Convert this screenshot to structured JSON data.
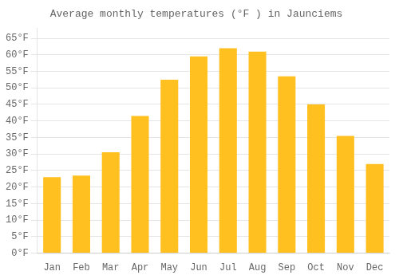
{
  "chart_data": {
    "type": "bar",
    "title": "Average monthly temperatures (°F ) in Jaunciems",
    "categories": [
      "Jan",
      "Feb",
      "Mar",
      "Apr",
      "May",
      "Jun",
      "Jul",
      "Aug",
      "Sep",
      "Oct",
      "Nov",
      "Dec"
    ],
    "values": [
      23,
      23.5,
      30.5,
      41.5,
      52.5,
      59.5,
      62,
      61,
      53.5,
      45,
      35.5,
      27
    ],
    "color": "#FFC020",
    "ylim": [
      0,
      68
    ],
    "yticks": [
      {
        "value": 0,
        "label": "0°F"
      },
      {
        "value": 5,
        "label": "5°F"
      },
      {
        "value": 10,
        "label": "10°F"
      },
      {
        "value": 15,
        "label": "15°F"
      },
      {
        "value": 20,
        "label": "20°F"
      },
      {
        "value": 25,
        "label": "25°F"
      },
      {
        "value": 30,
        "label": "30°F"
      },
      {
        "value": 35,
        "label": "35°F"
      },
      {
        "value": 40,
        "label": "40°F"
      },
      {
        "value": 45,
        "label": "45°F"
      },
      {
        "value": 50,
        "label": "50°F"
      },
      {
        "value": 55,
        "label": "55°F"
      },
      {
        "value": 60,
        "label": "60°F"
      },
      {
        "value": 65,
        "label": "65°F"
      }
    ],
    "grid": true
  }
}
